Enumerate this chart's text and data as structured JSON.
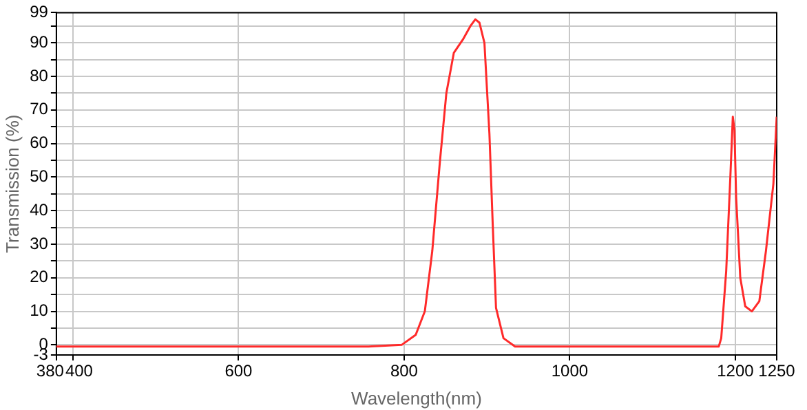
{
  "chart_data": {
    "type": "line",
    "xlabel": "Wavelength(nm)",
    "ylabel": "Transmission (%)",
    "x": [
      380,
      757,
      797,
      814,
      825,
      834,
      843,
      851,
      860,
      871,
      880,
      886,
      891,
      897,
      903,
      907,
      911,
      920,
      934,
      1000,
      1100,
      1180,
      1183,
      1189,
      1194,
      1197,
      1199,
      1201,
      1206,
      1212,
      1220,
      1229,
      1237,
      1246,
      1250
    ],
    "series": [
      {
        "color": "#ff2a2a",
        "values": [
          -0.5,
          -0.5,
          0,
          3,
          10,
          28,
          54,
          75,
          87,
          91,
          95,
          97,
          96,
          90,
          63,
          36,
          11,
          2,
          -0.5,
          -0.5,
          -0.5,
          -0.5,
          2,
          22,
          50,
          68,
          64,
          44,
          20,
          11.5,
          10,
          13,
          28,
          48,
          68
        ]
      }
    ],
    "xlim": [
      380,
      1250
    ],
    "xticks": [
      380,
      400,
      600,
      800,
      1000,
      1200,
      1250
    ],
    "ylim": [
      -3,
      99
    ],
    "yticks": [
      -3,
      0,
      {
        "value": 5,
        "label": null
      },
      10,
      {
        "value": 15,
        "label": null
      },
      20,
      {
        "value": 25,
        "label": null
      },
      30,
      {
        "value": 35,
        "label": null
      },
      40,
      {
        "value": 45,
        "label": null
      },
      50,
      {
        "value": 55,
        "label": null
      },
      60,
      {
        "value": 65,
        "label": null
      },
      70,
      {
        "value": 75,
        "label": null
      },
      80,
      {
        "value": 85,
        "label": null
      },
      90,
      {
        "value": 95,
        "label": null
      },
      99
    ],
    "grid": true,
    "marker": "none",
    "line_style": "solid",
    "legend": false
  }
}
